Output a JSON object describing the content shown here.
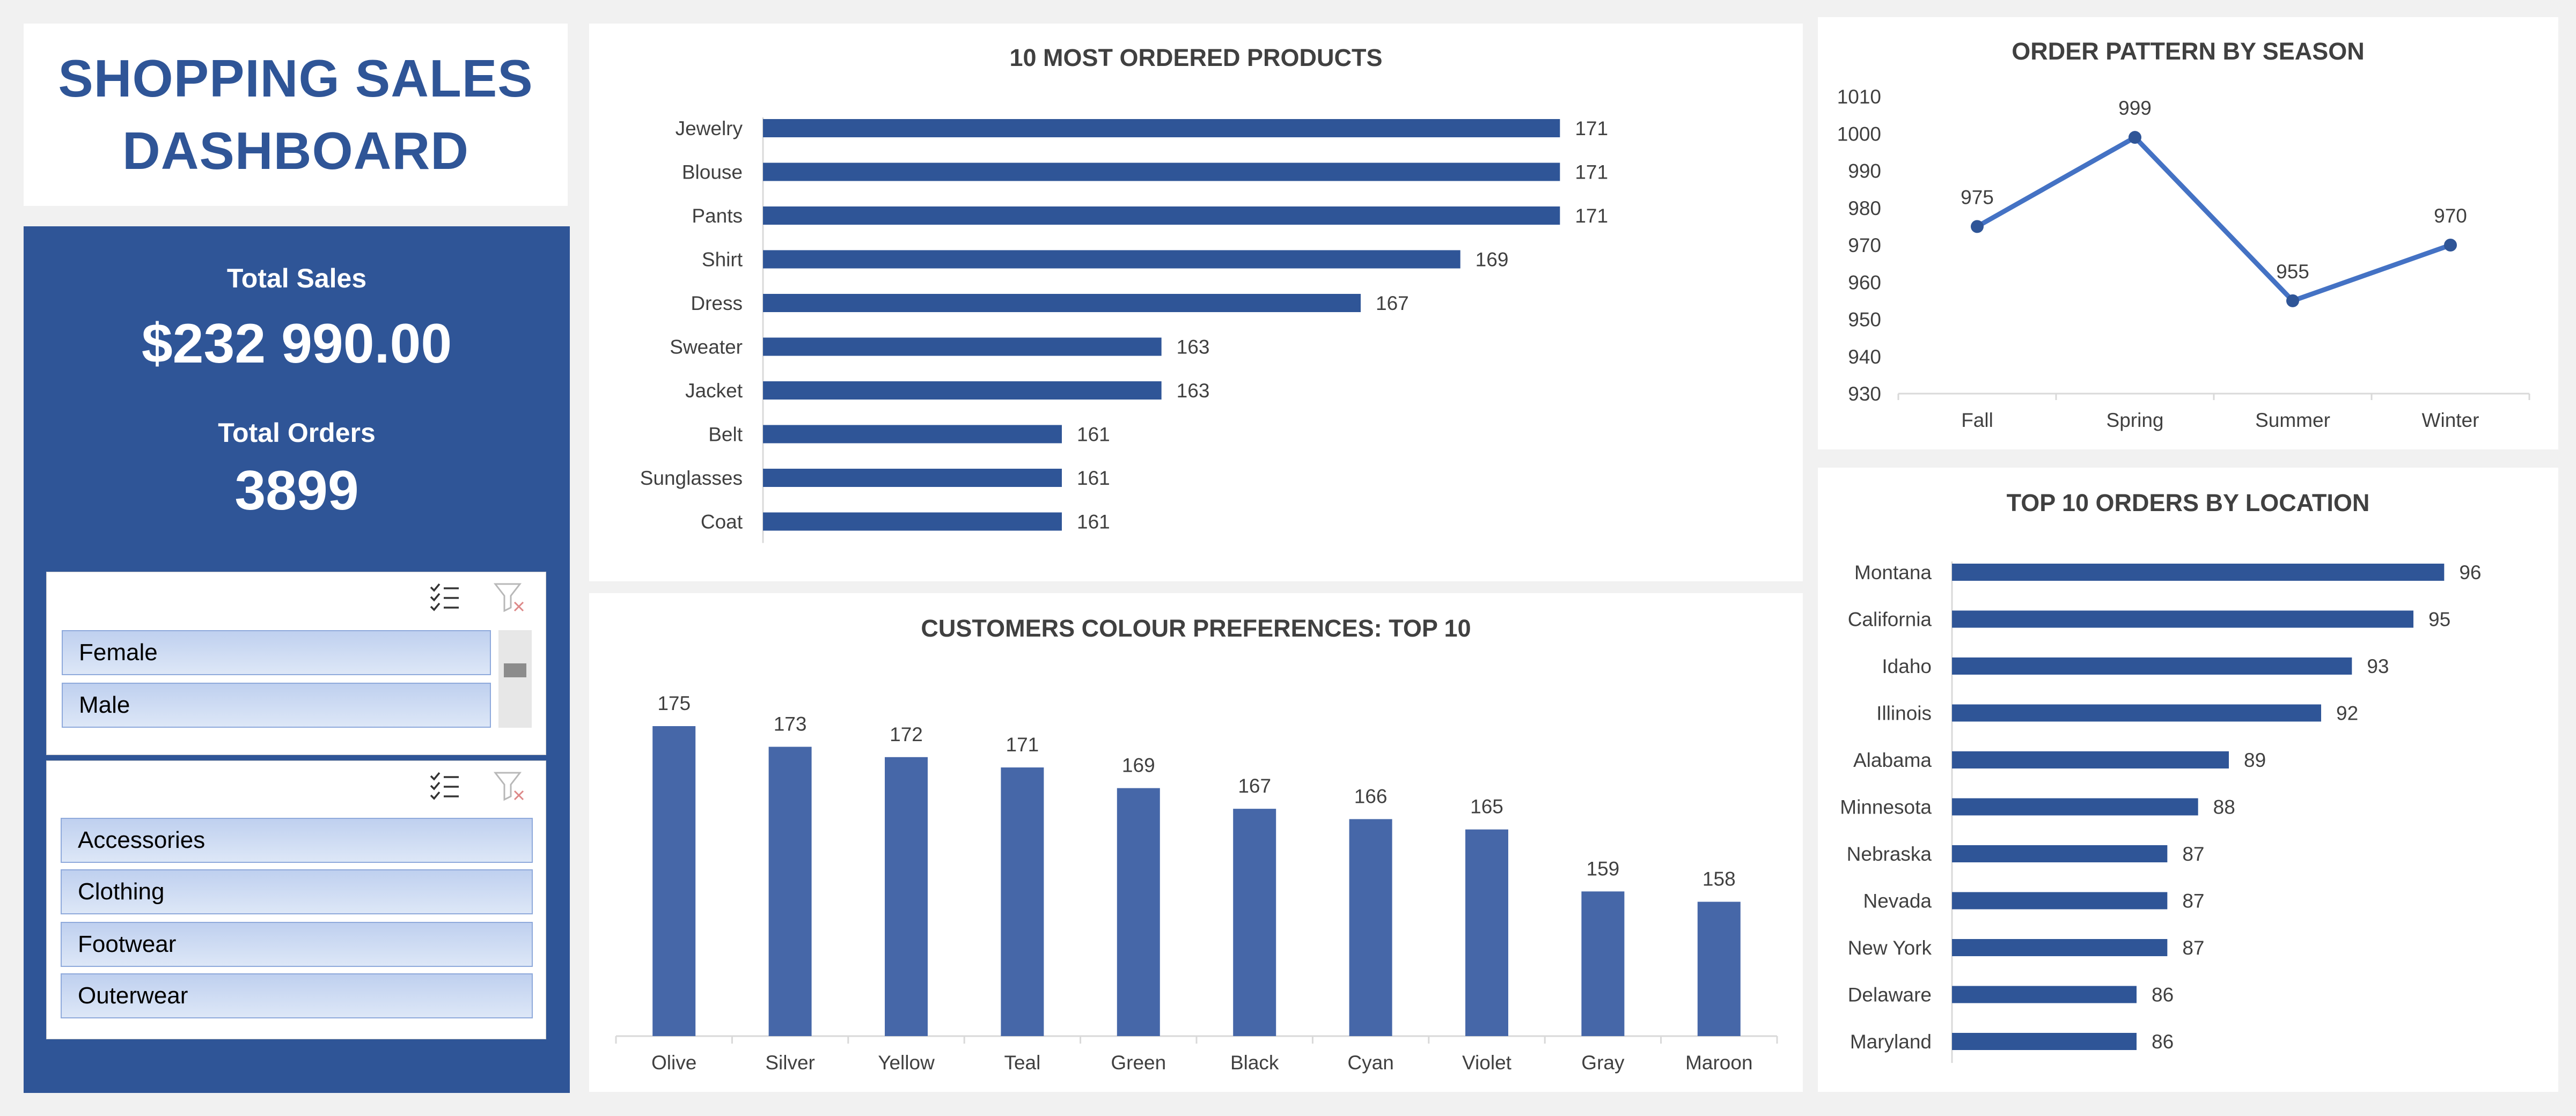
{
  "dashboard": {
    "title_line1": "SHOPPING SALES",
    "title_line2": "DASHBOARD"
  },
  "kpis": {
    "total_sales_label": "Total Sales",
    "total_sales_value": "$232 990.00",
    "total_orders_label": "Total Orders",
    "total_orders_value": "3899"
  },
  "slicers": {
    "gender": {
      "items": [
        "Female",
        "Male"
      ]
    },
    "category": {
      "items": [
        "Accessories",
        "Clothing",
        "Footwear",
        "Outerwear"
      ]
    },
    "icons": {
      "multi_select": "multi-select-icon",
      "clear_filter": "clear-filter-icon"
    }
  },
  "colors": {
    "accent": "#2f5597",
    "bar": "#2f5597",
    "column": "#4667a8",
    "line": "#4472c4",
    "panel": "#ffffff",
    "background": "#f1f1f1"
  },
  "chart_data": [
    {
      "id": "products",
      "type": "bar",
      "orientation": "horizontal",
      "title": "10 MOST ORDERED PRODUCTS",
      "categories": [
        "Jewelry",
        "Blouse",
        "Pants",
        "Shirt",
        "Dress",
        "Sweater",
        "Jacket",
        "Belt",
        "Sunglasses",
        "Coat"
      ],
      "values": [
        171,
        171,
        171,
        169,
        167,
        163,
        163,
        161,
        161,
        161
      ],
      "axis_min": 155,
      "data_labels": true
    },
    {
      "id": "season",
      "type": "line",
      "title": "ORDER PATTERN BY SEASON",
      "categories": [
        "Fall",
        "Spring",
        "Summer",
        "Winter"
      ],
      "values": [
        975,
        999,
        955,
        970
      ],
      "ylim": [
        930,
        1010
      ],
      "yticks": [
        930,
        940,
        950,
        960,
        970,
        980,
        990,
        1000,
        1010
      ],
      "data_labels": true
    },
    {
      "id": "colours",
      "type": "bar",
      "orientation": "vertical",
      "title": "CUSTOMERS COLOUR PREFERENCES: TOP 10",
      "categories": [
        "Olive",
        "Silver",
        "Yellow",
        "Teal",
        "Green",
        "Black",
        "Cyan",
        "Violet",
        "Gray",
        "Maroon"
      ],
      "values": [
        175,
        173,
        172,
        171,
        169,
        167,
        166,
        165,
        159,
        158
      ],
      "axis_min": 145,
      "data_labels": true
    },
    {
      "id": "locations",
      "type": "bar",
      "orientation": "horizontal",
      "title": "TOP 10 ORDERS BY LOCATION",
      "categories": [
        "Montana",
        "California",
        "Idaho",
        "Illinois",
        "Alabama",
        "Minnesota",
        "Nebraska",
        "Nevada",
        "New York",
        "Delaware",
        "Maryland"
      ],
      "values": [
        96,
        95,
        93,
        92,
        89,
        88,
        87,
        87,
        87,
        86,
        86
      ],
      "axis_min": 80,
      "data_labels": true
    }
  ]
}
